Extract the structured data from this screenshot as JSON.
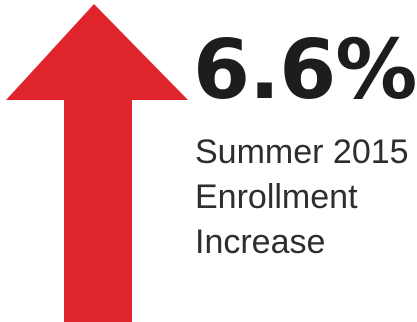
{
  "arrow": {
    "icon": "up-arrow-icon",
    "color": "#e0242b"
  },
  "stat": {
    "value": "6.6%",
    "color": "#1d1d1b"
  },
  "caption": {
    "lines": [
      "Summer 2015",
      "Enrollment",
      "Increase"
    ],
    "color": "#2e2e2e"
  }
}
